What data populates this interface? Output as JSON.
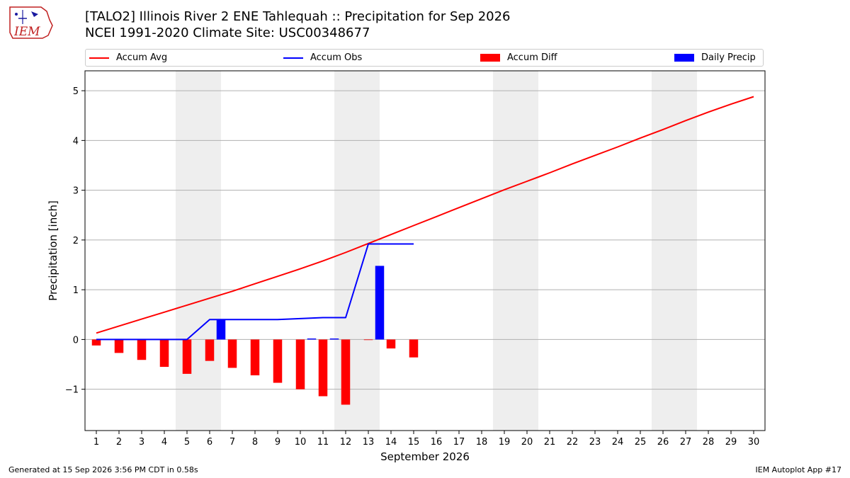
{
  "header": {
    "title_line1": "[TALO2] Illinois River 2 ENE Tahlequah :: Precipitation for Sep 2026",
    "title_line2": "NCEI 1991-2020 Climate Site: USC00348677"
  },
  "logo": {
    "text": "IEM"
  },
  "legend": {
    "accum_avg": "Accum Avg",
    "accum_obs": "Accum Obs",
    "accum_diff": "Accum Diff",
    "daily_precip": "Daily Precip"
  },
  "footer": {
    "generated": "Generated at 15 Sep 2026 3:56 PM CDT in 0.58s",
    "app": "IEM Autoplot App #17"
  },
  "chart_data": {
    "type": "bar",
    "xlabel": "September 2026",
    "ylabel": "Precipitation [inch]",
    "ylim": [
      -1.83,
      5.4
    ],
    "yticks": [
      -1,
      0,
      1,
      2,
      3,
      4,
      5
    ],
    "xlim": [
      0.5,
      30.5
    ],
    "days": [
      1,
      2,
      3,
      4,
      5,
      6,
      7,
      8,
      9,
      10,
      11,
      12,
      13,
      14,
      15,
      16,
      17,
      18,
      19,
      20,
      21,
      22,
      23,
      24,
      25,
      26,
      27,
      28,
      29,
      30
    ],
    "weekend_bands": [
      [
        4.5,
        6.5
      ],
      [
        11.5,
        13.5
      ],
      [
        18.5,
        20.5
      ],
      [
        25.5,
        27.5
      ]
    ],
    "grid": "horizontal",
    "colors": {
      "avg": "#ff0000",
      "obs": "#0000ff",
      "diff": "#ff0000",
      "daily": "#0000ff",
      "band": "#eeeeee"
    },
    "series": [
      {
        "name": "Accum Avg",
        "kind": "line",
        "values": [
          0.13,
          0.27,
          0.41,
          0.55,
          0.69,
          0.83,
          0.97,
          1.12,
          1.27,
          1.42,
          1.58,
          1.75,
          1.93,
          2.11,
          2.29,
          2.47,
          2.65,
          2.83,
          3.01,
          3.18,
          3.35,
          3.53,
          3.7,
          3.87,
          4.05,
          4.22,
          4.4,
          4.57,
          4.73,
          4.88
        ]
      },
      {
        "name": "Accum Obs",
        "kind": "line",
        "values": [
          0.0,
          0.0,
          0.0,
          0.0,
          0.0,
          0.4,
          0.4,
          0.4,
          0.4,
          0.42,
          0.44,
          0.44,
          1.92,
          1.92,
          1.92
        ]
      },
      {
        "name": "Accum Diff",
        "kind": "bar",
        "offset": 0,
        "values": [
          -0.12,
          -0.27,
          -0.41,
          -0.55,
          -0.69,
          -0.43,
          -0.57,
          -0.72,
          -0.87,
          -1.0,
          -1.14,
          -1.31,
          -0.01,
          -0.18,
          -0.36
        ]
      },
      {
        "name": "Daily Precip",
        "kind": "bar",
        "offset": 0.5,
        "values": [
          0,
          0,
          0,
          0,
          0,
          0.4,
          0,
          0,
          0,
          0.02,
          0.02,
          0,
          1.48,
          0,
          0
        ]
      }
    ]
  }
}
